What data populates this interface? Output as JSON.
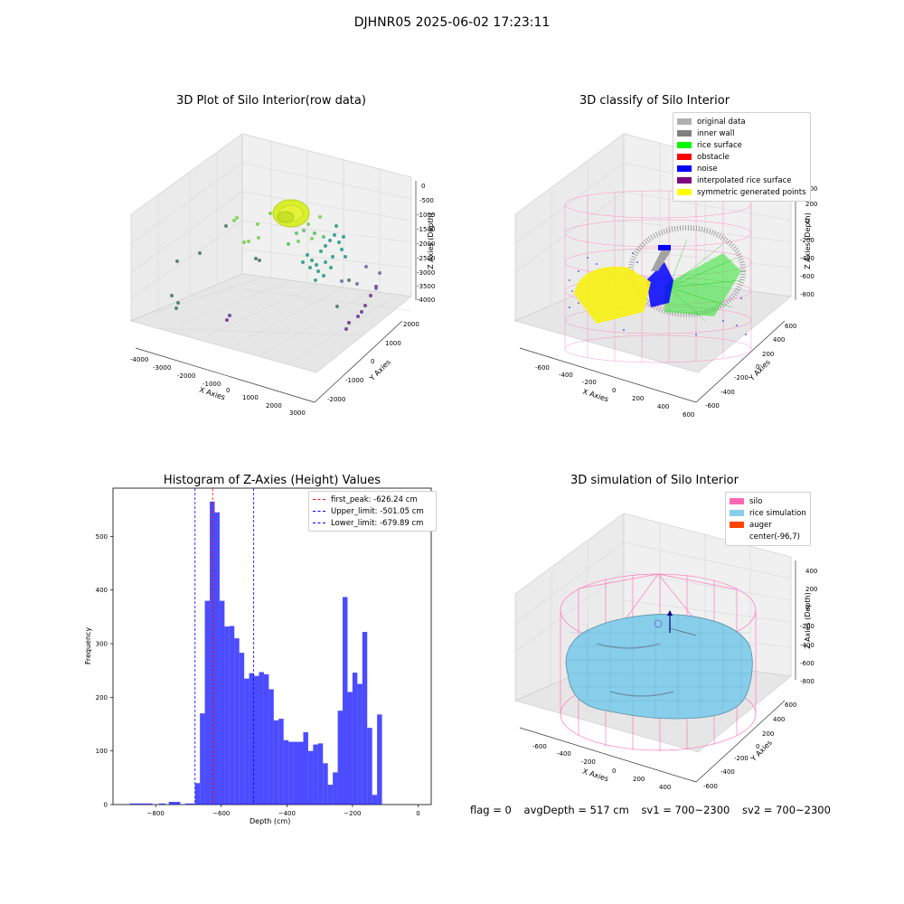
{
  "suptitle": "DJHNR05 2025-06-02 17:23:11",
  "panels": {
    "raw": {
      "title": "3D Plot of Silo Interior(row data)",
      "xlabel": "X Axies",
      "ylabel": "Y Axies",
      "zlabel": "Z Axies (Depth)",
      "xticks": [
        "-4000",
        "-3000",
        "-2000",
        "-1000",
        "0",
        "1000",
        "2000",
        "3000"
      ],
      "yticks": [
        "-2000",
        "-1000",
        "0",
        "1000",
        "2000"
      ],
      "zticks": [
        "0",
        "-500",
        "-1000",
        "-1500",
        "-2000",
        "-2500",
        "-3000",
        "-3500",
        "-4000"
      ]
    },
    "classify": {
      "title": "3D classify of Silo Interior",
      "xlabel": "X Axies",
      "ylabel": "Y Axies",
      "zlabel": "Z Axies (Depth)",
      "xticks": [
        "-600",
        "-400",
        "-200",
        "0",
        "200",
        "400",
        "600"
      ],
      "yticks": [
        "-600",
        "-400",
        "-200",
        "0",
        "200",
        "400",
        "600"
      ],
      "zticks": [
        "400",
        "200",
        "0",
        "-200",
        "-400",
        "-600",
        "-800"
      ],
      "legend": [
        {
          "label": "original data",
          "color": "#b0b0b0"
        },
        {
          "label": "inner wall",
          "color": "#808080"
        },
        {
          "label": "rice surface",
          "color": "#00ff00"
        },
        {
          "label": "obstacle",
          "color": "#ff0000"
        },
        {
          "label": "noise",
          "color": "#0000ff"
        },
        {
          "label": "interpolated rice surface",
          "color": "#800080"
        },
        {
          "label": "symmetric generated points",
          "color": "#ffff00"
        }
      ]
    },
    "simulation": {
      "title": "3D simulation of Silo Interior",
      "xlabel": "X Axies",
      "ylabel": "Y Axies",
      "zlabel": "Z Axies (Depth)",
      "xticks": [
        "-600",
        "-400",
        "-200",
        "0",
        "200",
        "400"
      ],
      "yticks": [
        "-600",
        "-400",
        "-200",
        "0",
        "200",
        "400",
        "600"
      ],
      "zticks": [
        "400",
        "200",
        "0",
        "-200",
        "-400",
        "-600",
        "-800"
      ],
      "legend": [
        {
          "label": "silo",
          "color": "#ff69b4"
        },
        {
          "label": "rice simulation",
          "color": "#87ceeb"
        },
        {
          "label": "auger",
          "color": "#ff4500"
        },
        {
          "label": "center(-96,7)",
          "color": "#ffffff"
        }
      ]
    }
  },
  "chart_data": {
    "type": "bar",
    "title": "Histogram of Z-Axies (Height) Values",
    "xlabel": "Depth (cm)",
    "ylabel": "Frequency",
    "xlim": [
      -930,
      40
    ],
    "ylim": [
      0,
      590
    ],
    "xticks": [
      -800,
      -600,
      -400,
      -200,
      0
    ],
    "yticks": [
      0,
      100,
      200,
      300,
      400,
      500
    ],
    "bar_color": "#0000ff",
    "bins": [
      {
        "x0": -880,
        "x1": -810,
        "value": 2
      },
      {
        "x0": -790,
        "x1": -770,
        "value": 2
      },
      {
        "x0": -760,
        "x1": -725,
        "value": 5
      },
      {
        "x0": -710,
        "x1": -680,
        "value": 2
      },
      {
        "x0": -680,
        "x1": -665,
        "value": 40
      },
      {
        "x0": -665,
        "x1": -650,
        "value": 170
      },
      {
        "x0": -650,
        "x1": -635,
        "value": 380
      },
      {
        "x0": -635,
        "x1": -620,
        "value": 565
      },
      {
        "x0": -620,
        "x1": -605,
        "value": 545
      },
      {
        "x0": -605,
        "x1": -590,
        "value": 380
      },
      {
        "x0": -590,
        "x1": -575,
        "value": 332
      },
      {
        "x0": -575,
        "x1": -560,
        "value": 333
      },
      {
        "x0": -560,
        "x1": -545,
        "value": 310
      },
      {
        "x0": -545,
        "x1": -530,
        "value": 283
      },
      {
        "x0": -530,
        "x1": -515,
        "value": 235
      },
      {
        "x0": -515,
        "x1": -500,
        "value": 245
      },
      {
        "x0": -500,
        "x1": -485,
        "value": 240
      },
      {
        "x0": -485,
        "x1": -470,
        "value": 247
      },
      {
        "x0": -470,
        "x1": -455,
        "value": 243
      },
      {
        "x0": -455,
        "x1": -440,
        "value": 215
      },
      {
        "x0": -440,
        "x1": -425,
        "value": 157
      },
      {
        "x0": -425,
        "x1": -410,
        "value": 160
      },
      {
        "x0": -410,
        "x1": -395,
        "value": 120
      },
      {
        "x0": -395,
        "x1": -380,
        "value": 117
      },
      {
        "x0": -380,
        "x1": -365,
        "value": 117
      },
      {
        "x0": -365,
        "x1": -350,
        "value": 117
      },
      {
        "x0": -350,
        "x1": -335,
        "value": 135
      },
      {
        "x0": -335,
        "x1": -320,
        "value": 100
      },
      {
        "x0": -320,
        "x1": -305,
        "value": 112
      },
      {
        "x0": -305,
        "x1": -290,
        "value": 114
      },
      {
        "x0": -290,
        "x1": -275,
        "value": 77
      },
      {
        "x0": -275,
        "x1": -260,
        "value": 37
      },
      {
        "x0": -260,
        "x1": -245,
        "value": 60
      },
      {
        "x0": -245,
        "x1": -230,
        "value": 175
      },
      {
        "x0": -230,
        "x1": -215,
        "value": 387
      },
      {
        "x0": -215,
        "x1": -200,
        "value": 210
      },
      {
        "x0": -200,
        "x1": -185,
        "value": 246
      },
      {
        "x0": -185,
        "x1": -170,
        "value": 225
      },
      {
        "x0": -170,
        "x1": -155,
        "value": 322
      },
      {
        "x0": -155,
        "x1": -140,
        "value": 143
      },
      {
        "x0": -140,
        "x1": -125,
        "value": 18
      },
      {
        "x0": -125,
        "x1": -110,
        "value": 168
      }
    ],
    "vlines": [
      {
        "label": "first_peak: -626.24 cm",
        "value": -626.24,
        "color": "#ff0000"
      },
      {
        "label": "Upper_limit: -501.05 cm",
        "value": -501.05,
        "color": "#0000ff"
      },
      {
        "label": "Lower_limit: -679.89 cm",
        "value": -679.89,
        "color": "#0000ff"
      }
    ]
  },
  "footer": {
    "flag": "flag = 0",
    "avg": "avgDepth = 517 cm",
    "sv1": "sv1 = 700~2300",
    "sv2": "sv2 = 700~2300"
  }
}
